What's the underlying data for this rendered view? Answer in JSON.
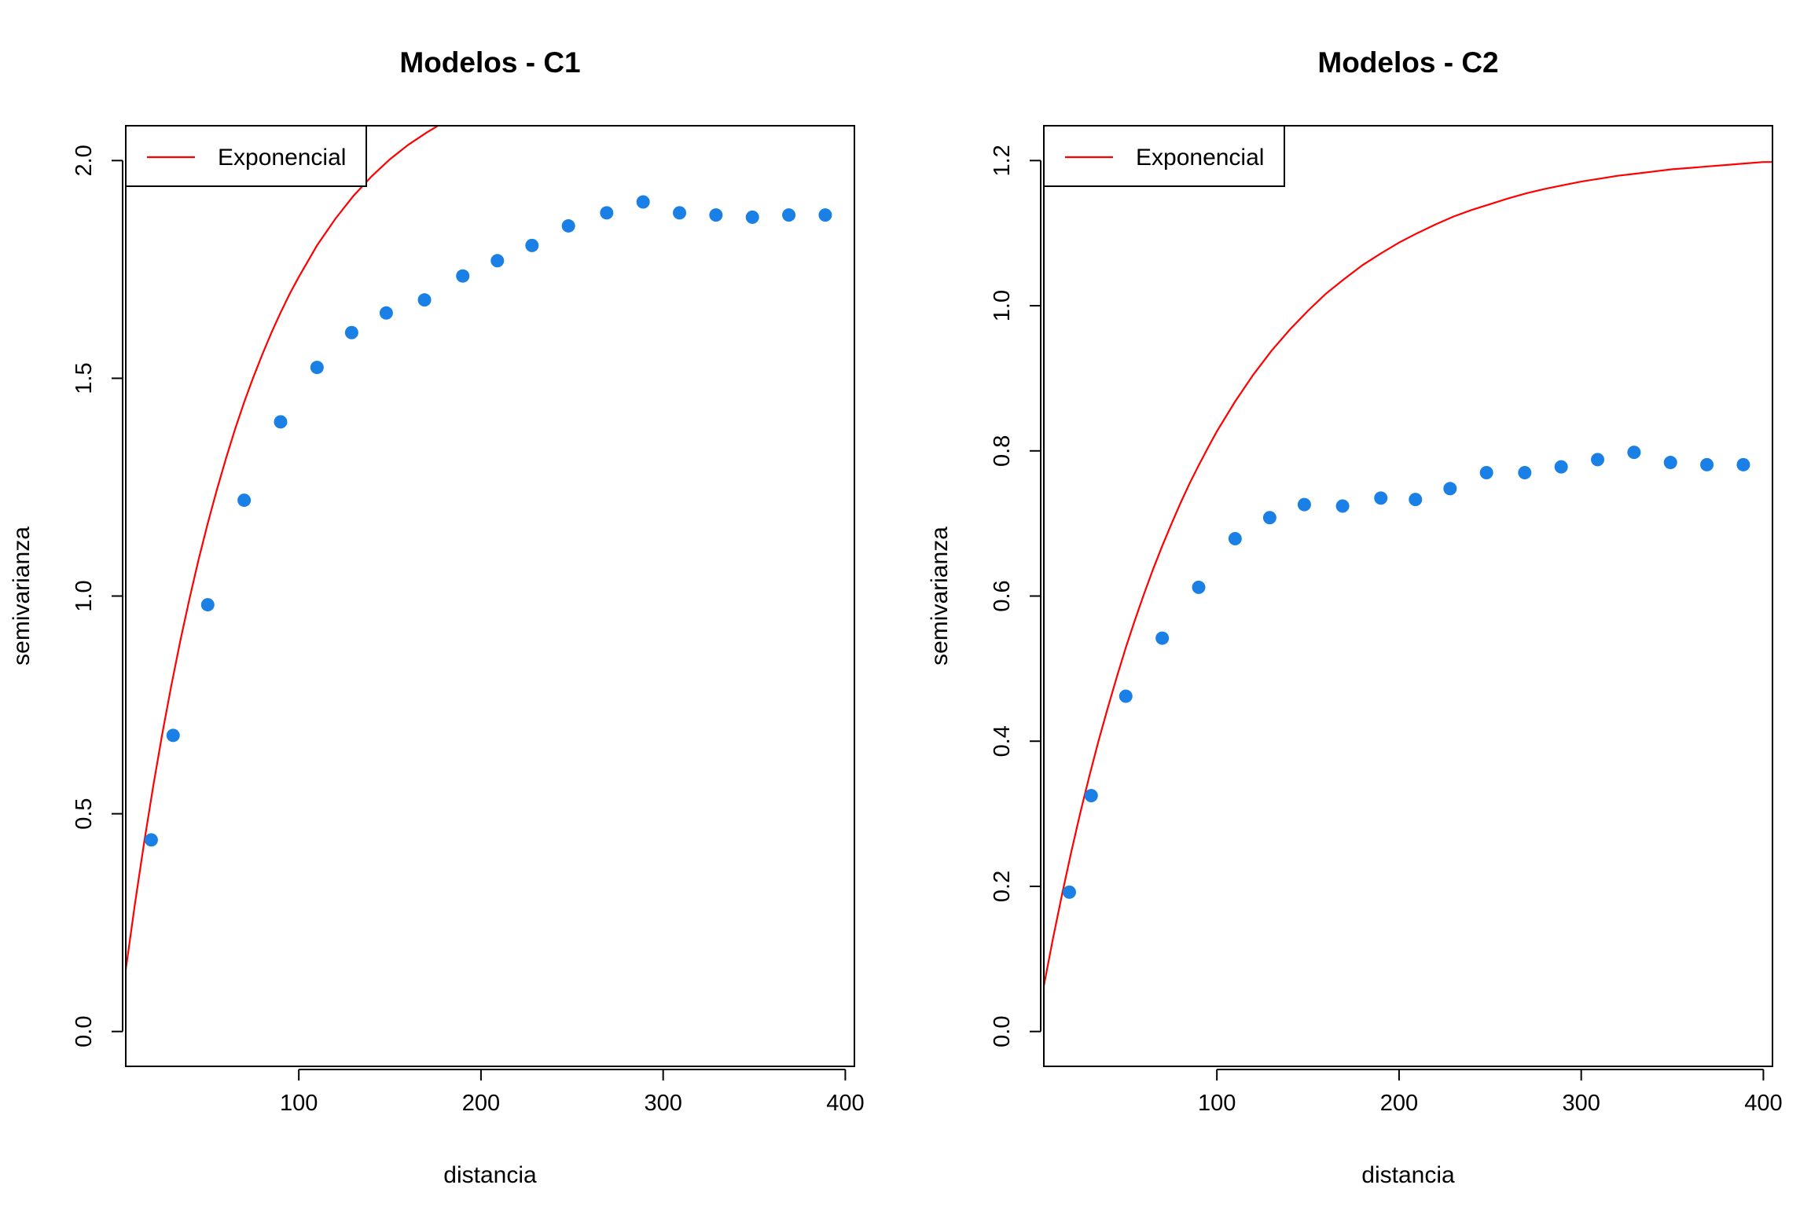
{
  "chart_data": [
    {
      "type": "scatter",
      "title": "Modelos - C1",
      "xlabel": "distancia",
      "ylabel": "semivarianza",
      "xlim": [
        5,
        405
      ],
      "ylim": [
        -0.08,
        2.08
      ],
      "x_ticks": [
        100,
        200,
        300,
        400
      ],
      "y_ticks": [
        0.0,
        0.5,
        1.0,
        1.5,
        2.0
      ],
      "x_tick_labels": [
        "100",
        "200",
        "300",
        "400"
      ],
      "y_tick_labels": [
        "0.0",
        "0.5",
        "1.0",
        "1.5",
        "2.0"
      ],
      "grid": false,
      "legend_position": "top-left",
      "legend": [
        {
          "label": "Exponencial",
          "color": "#ff0000"
        }
      ],
      "series": [
        {
          "kind": "points",
          "color": "#1a80e6",
          "x": [
            19,
            31,
            50,
            70,
            90,
            110,
            129,
            148,
            169,
            190,
            209,
            228,
            248,
            269,
            289,
            309,
            329,
            349,
            369,
            389
          ],
          "y": [
            0.44,
            0.68,
            0.98,
            1.22,
            1.4,
            1.525,
            1.605,
            1.65,
            1.68,
            1.735,
            1.77,
            1.805,
            1.85,
            1.88,
            1.905,
            1.88,
            1.875,
            1.87,
            1.875,
            1.875
          ]
        },
        {
          "kind": "line",
          "name": "Exponencial",
          "color": "#ff0000",
          "x": [
            5,
            10,
            15,
            20,
            25,
            30,
            35,
            40,
            45,
            50,
            55,
            60,
            65,
            70,
            75,
            80,
            85,
            90,
            95,
            100,
            110,
            120,
            130,
            140,
            150,
            160,
            170,
            180,
            190,
            200,
            210,
            220,
            230,
            240,
            250,
            260,
            270,
            280,
            290,
            300,
            310,
            320,
            330,
            340,
            350,
            360,
            370,
            380,
            390,
            400,
            405
          ],
          "y": [
            0.142,
            0.292,
            0.432,
            0.562,
            0.682,
            0.794,
            0.898,
            0.994,
            1.084,
            1.167,
            1.244,
            1.316,
            1.383,
            1.445,
            1.502,
            1.555,
            1.605,
            1.651,
            1.694,
            1.733,
            1.805,
            1.866,
            1.919,
            1.964,
            2.003,
            2.036,
            2.064,
            2.089,
            2.109,
            2.127,
            2.142,
            2.155,
            2.166,
            2.176,
            2.184,
            2.191,
            2.197,
            2.202,
            2.206,
            2.21,
            2.213,
            2.216,
            2.218,
            2.22,
            2.222,
            2.223,
            2.225,
            2.226,
            2.227,
            2.228,
            2.228
          ]
        }
      ]
    },
    {
      "type": "scatter",
      "title": "Modelos - C2",
      "xlabel": "distancia",
      "ylabel": "semivarianza",
      "xlim": [
        5,
        405
      ],
      "ylim": [
        -0.048,
        1.248
      ],
      "x_ticks": [
        100,
        200,
        300,
        400
      ],
      "y_ticks": [
        0.0,
        0.2,
        0.4,
        0.6,
        0.8,
        1.0,
        1.2
      ],
      "x_tick_labels": [
        "100",
        "200",
        "300",
        "400"
      ],
      "y_tick_labels": [
        "0.0",
        "0.2",
        "0.4",
        "0.6",
        "0.8",
        "1.0",
        "1.2"
      ],
      "grid": false,
      "legend_position": "top-left",
      "legend": [
        {
          "label": "Exponencial",
          "color": "#ff0000"
        }
      ],
      "series": [
        {
          "kind": "points",
          "color": "#1a80e6",
          "x": [
            19,
            31,
            50,
            70,
            90,
            110,
            129,
            148,
            169,
            190,
            209,
            228,
            248,
            269,
            289,
            309,
            329,
            349,
            369,
            389
          ],
          "y": [
            0.192,
            0.325,
            0.462,
            0.542,
            0.612,
            0.679,
            0.708,
            0.726,
            0.724,
            0.735,
            0.733,
            0.748,
            0.77,
            0.77,
            0.778,
            0.788,
            0.798,
            0.784,
            0.781,
            0.781
          ]
        },
        {
          "kind": "line",
          "name": "Exponencial",
          "color": "#ff0000",
          "x": [
            5,
            10,
            15,
            20,
            25,
            30,
            35,
            40,
            45,
            50,
            55,
            60,
            65,
            70,
            75,
            80,
            85,
            90,
            95,
            100,
            110,
            120,
            130,
            140,
            150,
            160,
            170,
            180,
            190,
            200,
            210,
            220,
            230,
            240,
            250,
            260,
            270,
            280,
            290,
            300,
            310,
            320,
            330,
            340,
            350,
            360,
            370,
            380,
            390,
            400,
            405
          ],
          "y": [
            0.063,
            0.128,
            0.189,
            0.247,
            0.301,
            0.352,
            0.4,
            0.445,
            0.488,
            0.529,
            0.567,
            0.603,
            0.637,
            0.669,
            0.699,
            0.728,
            0.755,
            0.78,
            0.804,
            0.827,
            0.868,
            0.905,
            0.938,
            0.967,
            0.993,
            1.017,
            1.037,
            1.056,
            1.072,
            1.087,
            1.1,
            1.112,
            1.123,
            1.132,
            1.14,
            1.148,
            1.155,
            1.161,
            1.166,
            1.171,
            1.175,
            1.179,
            1.182,
            1.185,
            1.188,
            1.19,
            1.192,
            1.194,
            1.196,
            1.198,
            1.198
          ]
        }
      ]
    }
  ]
}
